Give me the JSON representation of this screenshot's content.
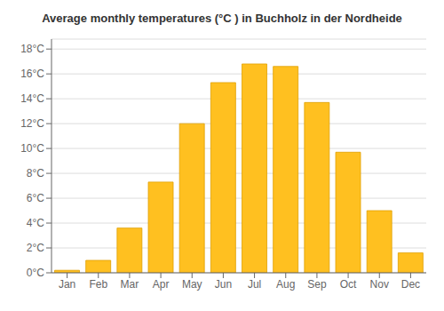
{
  "chart_data": {
    "type": "bar",
    "title": "Average monthly temperatures (°C ) in Buchholz in der Nordheide",
    "categories": [
      "Jan",
      "Feb",
      "Mar",
      "Apr",
      "May",
      "Jun",
      "Jul",
      "Aug",
      "Sep",
      "Oct",
      "Nov",
      "Dec"
    ],
    "values": [
      0.2,
      1.0,
      3.6,
      7.3,
      12.0,
      15.3,
      16.8,
      16.6,
      13.7,
      9.7,
      5.0,
      1.6
    ],
    "color": "#FFC020",
    "ylim": [
      0,
      18.8
    ],
    "yticks": [
      {
        "value": 0,
        "label": "0°C"
      },
      {
        "value": 2,
        "label": "2°C"
      },
      {
        "value": 4,
        "label": "4°C"
      },
      {
        "value": 6,
        "label": "6°C"
      },
      {
        "value": 8,
        "label": "8°C"
      },
      {
        "value": 10,
        "label": "10°C"
      },
      {
        "value": 12,
        "label": "12°C"
      },
      {
        "value": 14,
        "label": "14°C"
      },
      {
        "value": 16,
        "label": "16°C"
      },
      {
        "value": 18,
        "label": "18°C"
      }
    ],
    "grid": true
  }
}
